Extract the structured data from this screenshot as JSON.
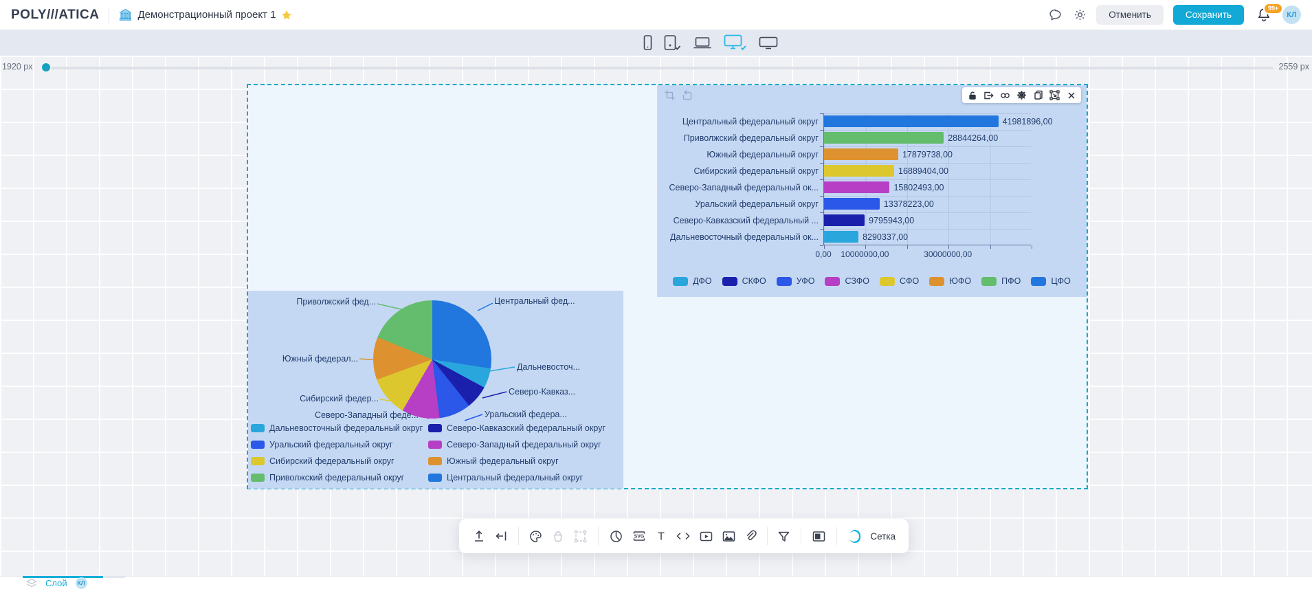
{
  "header": {
    "logo_text": "POLY///ATICA",
    "project_title": "Демонстрационный проект 1",
    "actions": {
      "cancel_label": "Отменить",
      "save_label": "Сохранить",
      "notifications_badge": "99+",
      "avatar_initials": "КЛ"
    },
    "accent_color": "#12a9d6"
  },
  "device_toolbar": {
    "items": [
      "phone",
      "tablet",
      "laptop",
      "desktop",
      "tv"
    ],
    "active": "desktop",
    "active_color": "#29b8e6"
  },
  "ruler": {
    "left_label": "1920 px",
    "right_label": "2559 px"
  },
  "widget_toolbar": {
    "icons": [
      "unlock",
      "export",
      "link",
      "settings",
      "copy",
      "transform",
      "close"
    ]
  },
  "chart_data": [
    {
      "type": "bar",
      "orientation": "horizontal",
      "categories": [
        "Центральный федеральный округ",
        "Приволжский федеральный округ",
        "Южный федеральный округ",
        "Сибирский федеральный округ",
        "Северо-Западный федеральный ок...",
        "Уральский федеральный округ",
        "Северо-Кавказский федеральный ...",
        "Дальневосточный федеральный ок..."
      ],
      "values": [
        41981896,
        28844264,
        17879738,
        16889404,
        15802493,
        13378223,
        9795943,
        8290337
      ],
      "value_labels": [
        "41981896,00",
        "28844264,00",
        "17879738,00",
        "16889404,00",
        "15802493,00",
        "13378223,00",
        "9795943,00",
        "8290337,00"
      ],
      "bar_colors": [
        "#2177de",
        "#63bd6d",
        "#dd922f",
        "#ddc72f",
        "#b73fc6",
        "#2b58e8",
        "#1b20ac",
        "#29a7dd"
      ],
      "xlim": [
        0,
        50000000
      ],
      "x_ticks": [
        {
          "value": 0,
          "label": "0,00"
        },
        {
          "value": 10000000,
          "label": "10000000,00"
        },
        {
          "value": 30000000,
          "label": "30000000,00"
        }
      ],
      "grid": true,
      "legend_position": "bottom",
      "legend": [
        {
          "label": "ДФО",
          "color": "#29a7dd"
        },
        {
          "label": "СКФО",
          "color": "#1b20ac"
        },
        {
          "label": "УФО",
          "color": "#2b58e8"
        },
        {
          "label": "СЗФО",
          "color": "#b73fc6"
        },
        {
          "label": "СФО",
          "color": "#ddc72f"
        },
        {
          "label": "ЮФО",
          "color": "#dd922f"
        },
        {
          "label": "ПФО",
          "color": "#63bd6d"
        },
        {
          "label": "ЦФО",
          "color": "#2177de"
        }
      ]
    },
    {
      "type": "pie",
      "slices": [
        {
          "label": "Центральный фед...",
          "value": 41981896,
          "color": "#2177de"
        },
        {
          "label": "Дальневосточ...",
          "value": 8290337,
          "color": "#29a7dd"
        },
        {
          "label": "Северо-Кавказ...",
          "value": 9795943,
          "color": "#1b20ac"
        },
        {
          "label": "Уральский федера...",
          "value": 13378223,
          "color": "#2b58e8"
        },
        {
          "label": "Северо-Западный феде...",
          "value": 15802493,
          "color": "#b73fc6"
        },
        {
          "label": "Сибирский федер...",
          "value": 16889404,
          "color": "#ddc72f"
        },
        {
          "label": "Южный федерал...",
          "value": 17879738,
          "color": "#dd922f"
        },
        {
          "label": "Приволжский фед...",
          "value": 28844264,
          "color": "#63bd6d"
        }
      ],
      "legend_position": "bottom",
      "legend": [
        {
          "label": "Дальневосточный федеральный округ",
          "color": "#29a7dd"
        },
        {
          "label": "Северо-Кавказский федеральный округ",
          "color": "#1b20ac"
        },
        {
          "label": "Уральский федеральный округ",
          "color": "#2b58e8"
        },
        {
          "label": "Северо-Западный федеральный округ",
          "color": "#b73fc6"
        },
        {
          "label": "Сибирский федеральный округ",
          "color": "#ddc72f"
        },
        {
          "label": "Южный федеральный округ",
          "color": "#dd922f"
        },
        {
          "label": "Приволжский федеральный округ",
          "color": "#63bd6d"
        },
        {
          "label": "Центральный федеральный округ",
          "color": "#2177de"
        }
      ]
    }
  ],
  "bottom_toolbar": {
    "grid_toggle_label": "Сетка",
    "grid_toggle_on": true,
    "icons": [
      "upload",
      "collapse-left",
      "palette",
      "bucket",
      "frame-select",
      "pie-chart",
      "svg",
      "text",
      "code",
      "video",
      "image",
      "link",
      "filter",
      "panel"
    ]
  },
  "layers_bar": {
    "tab_label": "Слой",
    "badge_initials": "КЛ"
  }
}
